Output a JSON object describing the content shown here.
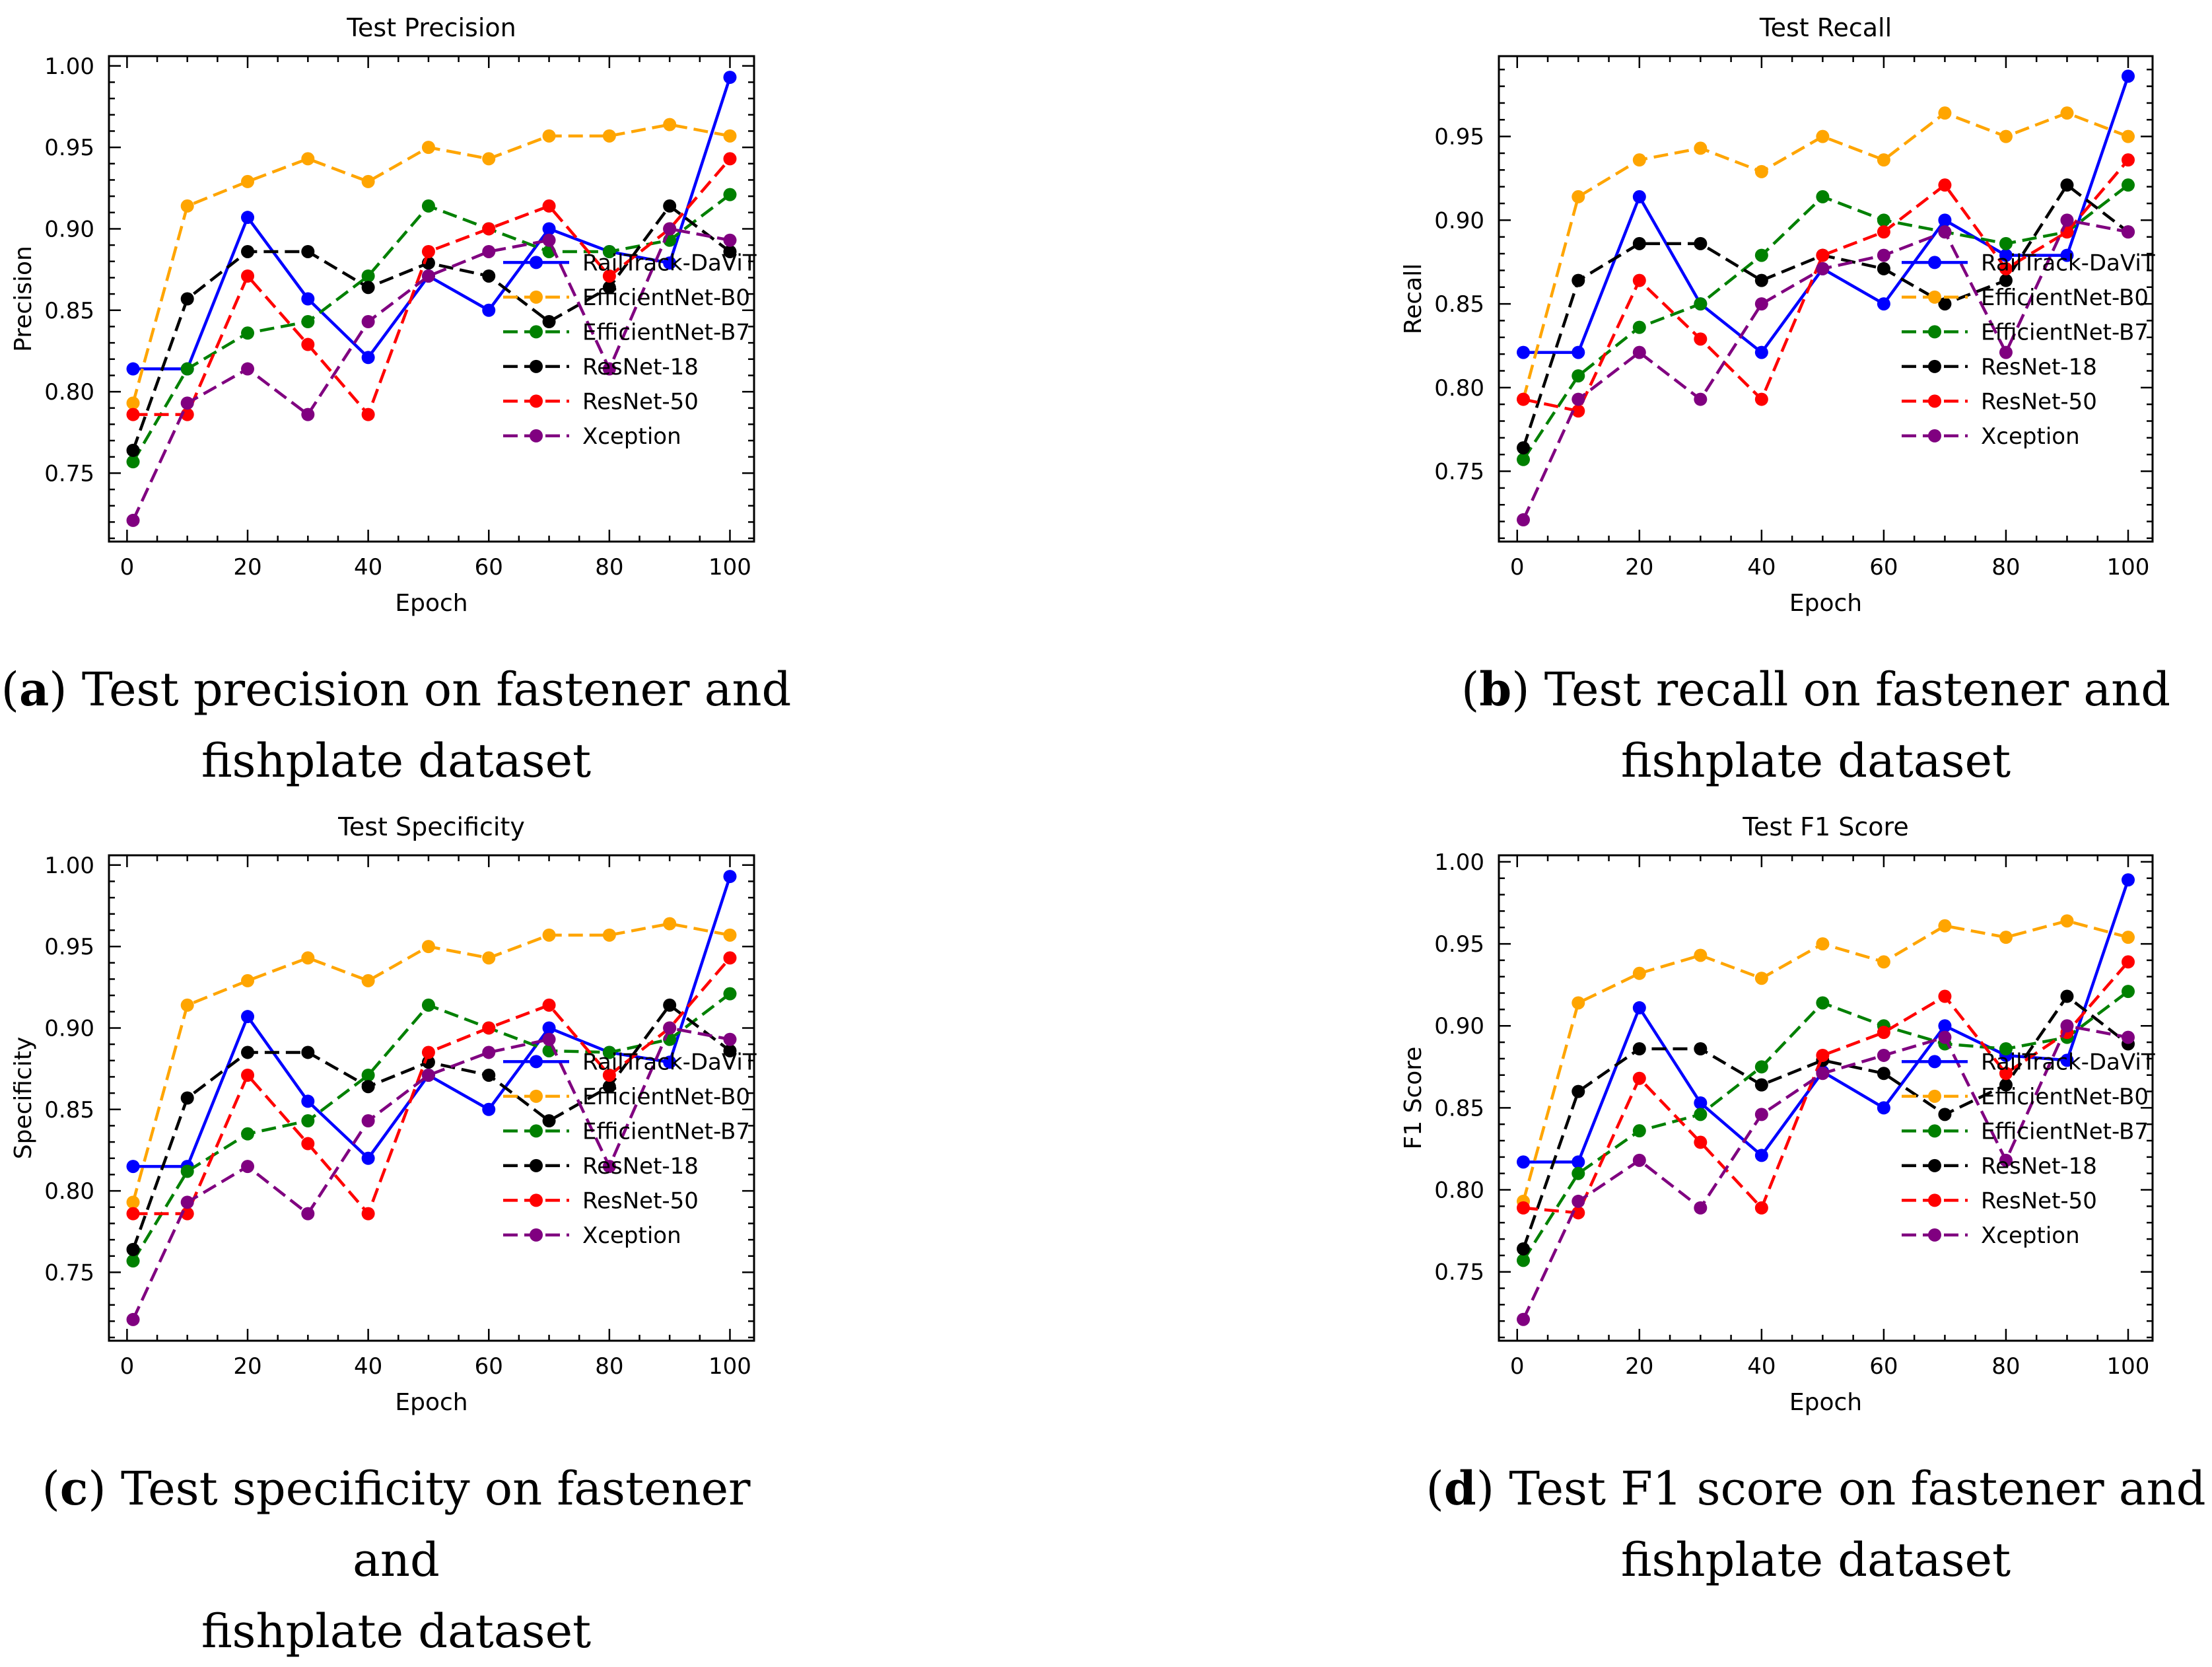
{
  "chart_data": [
    {
      "id": "a",
      "type": "line",
      "title": "Test Precision",
      "xlabel": "Epoch",
      "ylabel": "Precision",
      "x": [
        1,
        10,
        20,
        30,
        40,
        50,
        60,
        70,
        80,
        90,
        100
      ],
      "xlim": [
        -3,
        104
      ],
      "ylim": [
        0.708,
        1.006
      ],
      "xticks": [
        0,
        20,
        40,
        60,
        80,
        100
      ],
      "yticks": [
        0.75,
        0.8,
        0.85,
        0.9,
        0.95,
        1.0
      ],
      "grid": false,
      "legend_position": "center-right",
      "caption": {
        "letter": "a",
        "line1": " Test precision on fastener and",
        "line2": "fishplate dataset"
      },
      "series": [
        {
          "name": "RailTrack-DaViT",
          "color": "#0000ff",
          "style": "solid",
          "values": [
            0.814,
            0.814,
            0.907,
            0.857,
            0.821,
            0.871,
            0.85,
            0.9,
            0.886,
            0.879,
            0.993
          ]
        },
        {
          "name": "EfficientNet-B0",
          "color": "#ffa500",
          "style": "dashed",
          "values": [
            0.793,
            0.914,
            0.929,
            0.943,
            0.929,
            0.95,
            0.943,
            0.957,
            0.957,
            0.964,
            0.957
          ]
        },
        {
          "name": "EfficientNet-B7",
          "color": "#008000",
          "style": "dashed",
          "values": [
            0.757,
            0.814,
            0.836,
            0.843,
            0.871,
            0.914,
            0.9,
            0.886,
            0.886,
            0.893,
            0.921
          ]
        },
        {
          "name": "ResNet-18",
          "color": "#000000",
          "style": "dashed",
          "values": [
            0.764,
            0.857,
            0.886,
            0.886,
            0.864,
            0.879,
            0.871,
            0.843,
            0.864,
            0.914,
            0.886
          ]
        },
        {
          "name": "ResNet-50",
          "color": "#ff0000",
          "style": "dashed",
          "values": [
            0.786,
            0.786,
            0.871,
            0.829,
            0.786,
            0.886,
            0.9,
            0.914,
            0.871,
            0.9,
            0.943
          ]
        },
        {
          "name": "Xception",
          "color": "#800080",
          "style": "dashed",
          "values": [
            0.721,
            0.793,
            0.814,
            0.786,
            0.843,
            0.871,
            0.886,
            0.893,
            0.814,
            0.9,
            0.893
          ]
        }
      ]
    },
    {
      "id": "b",
      "type": "line",
      "title": "Test Recall",
      "xlabel": "Epoch",
      "ylabel": "Recall",
      "x": [
        1,
        10,
        20,
        30,
        40,
        50,
        60,
        70,
        80,
        90,
        100
      ],
      "xlim": [
        -3,
        104
      ],
      "ylim": [
        0.708,
        0.998
      ],
      "xticks": [
        0,
        20,
        40,
        60,
        80,
        100
      ],
      "yticks": [
        0.75,
        0.8,
        0.85,
        0.9,
        0.95
      ],
      "grid": false,
      "legend_position": "center-right",
      "caption": {
        "letter": "b",
        "line1": " Test recall on fastener and",
        "line2": "fishplate dataset"
      },
      "series": [
        {
          "name": "RailTrack-DaViT",
          "color": "#0000ff",
          "style": "solid",
          "values": [
            0.821,
            0.821,
            0.914,
            0.85,
            0.821,
            0.871,
            0.85,
            0.9,
            0.879,
            0.879,
            0.986
          ]
        },
        {
          "name": "EfficientNet-B0",
          "color": "#ffa500",
          "style": "dashed",
          "values": [
            0.793,
            0.914,
            0.936,
            0.943,
            0.929,
            0.95,
            0.936,
            0.964,
            0.95,
            0.964,
            0.95
          ]
        },
        {
          "name": "EfficientNet-B7",
          "color": "#008000",
          "style": "dashed",
          "values": [
            0.757,
            0.807,
            0.836,
            0.85,
            0.879,
            0.914,
            0.9,
            0.893,
            0.886,
            0.893,
            0.921
          ]
        },
        {
          "name": "ResNet-18",
          "color": "#000000",
          "style": "dashed",
          "values": [
            0.764,
            0.864,
            0.886,
            0.886,
            0.864,
            0.879,
            0.871,
            0.85,
            0.864,
            0.921,
            0.893
          ]
        },
        {
          "name": "ResNet-50",
          "color": "#ff0000",
          "style": "dashed",
          "values": [
            0.793,
            0.786,
            0.864,
            0.829,
            0.793,
            0.879,
            0.893,
            0.921,
            0.871,
            0.893,
            0.936
          ]
        },
        {
          "name": "Xception",
          "color": "#800080",
          "style": "dashed",
          "values": [
            0.721,
            0.793,
            0.821,
            0.793,
            0.85,
            0.871,
            0.879,
            0.893,
            0.821,
            0.9,
            0.893
          ]
        }
      ]
    },
    {
      "id": "c",
      "type": "line",
      "title": "Test Specificity",
      "xlabel": "Epoch",
      "ylabel": "Specificity",
      "x": [
        1,
        10,
        20,
        30,
        40,
        50,
        60,
        70,
        80,
        90,
        100
      ],
      "xlim": [
        -3,
        104
      ],
      "ylim": [
        0.708,
        1.006
      ],
      "xticks": [
        0,
        20,
        40,
        60,
        80,
        100
      ],
      "yticks": [
        0.75,
        0.8,
        0.85,
        0.9,
        0.95,
        1.0
      ],
      "grid": false,
      "legend_position": "center-right",
      "caption": {
        "letter": "c",
        "line1": " Test specificity on fastener and",
        "line2": "fishplate dataset"
      },
      "series": [
        {
          "name": "RailTrack-DaViT",
          "color": "#0000ff",
          "style": "solid",
          "values": [
            0.815,
            0.815,
            0.907,
            0.855,
            0.82,
            0.871,
            0.85,
            0.9,
            0.885,
            0.879,
            0.993
          ]
        },
        {
          "name": "EfficientNet-B0",
          "color": "#ffa500",
          "style": "dashed",
          "values": [
            0.793,
            0.914,
            0.929,
            0.943,
            0.929,
            0.95,
            0.943,
            0.957,
            0.957,
            0.964,
            0.957
          ]
        },
        {
          "name": "EfficientNet-B7",
          "color": "#008000",
          "style": "dashed",
          "values": [
            0.757,
            0.812,
            0.835,
            0.843,
            0.871,
            0.914,
            0.9,
            0.886,
            0.885,
            0.893,
            0.921
          ]
        },
        {
          "name": "ResNet-18",
          "color": "#000000",
          "style": "dashed",
          "values": [
            0.764,
            0.857,
            0.885,
            0.885,
            0.864,
            0.879,
            0.871,
            0.843,
            0.864,
            0.914,
            0.886
          ]
        },
        {
          "name": "ResNet-50",
          "color": "#ff0000",
          "style": "dashed",
          "values": [
            0.786,
            0.786,
            0.871,
            0.829,
            0.786,
            0.885,
            0.9,
            0.914,
            0.871,
            0.9,
            0.943
          ]
        },
        {
          "name": "Xception",
          "color": "#800080",
          "style": "dashed",
          "values": [
            0.721,
            0.793,
            0.815,
            0.786,
            0.843,
            0.871,
            0.885,
            0.893,
            0.815,
            0.9,
            0.893
          ]
        }
      ]
    },
    {
      "id": "d",
      "type": "line",
      "title": "Test F1 Score",
      "xlabel": "Epoch",
      "ylabel": "F1 Score",
      "x": [
        1,
        10,
        20,
        30,
        40,
        50,
        60,
        70,
        80,
        90,
        100
      ],
      "xlim": [
        -3,
        104
      ],
      "ylim": [
        0.708,
        1.004
      ],
      "xticks": [
        0,
        20,
        40,
        60,
        80,
        100
      ],
      "yticks": [
        0.75,
        0.8,
        0.85,
        0.9,
        0.95,
        1.0
      ],
      "grid": false,
      "legend_position": "center-right",
      "caption": {
        "letter": "d",
        "line1": " Test F1 score on fastener and",
        "line2": "fishplate dataset"
      },
      "series": [
        {
          "name": "RailTrack-DaViT",
          "color": "#0000ff",
          "style": "solid",
          "values": [
            0.817,
            0.817,
            0.911,
            0.853,
            0.821,
            0.872,
            0.85,
            0.9,
            0.882,
            0.879,
            0.989
          ]
        },
        {
          "name": "EfficientNet-B0",
          "color": "#ffa500",
          "style": "dashed",
          "values": [
            0.793,
            0.914,
            0.932,
            0.943,
            0.929,
            0.95,
            0.939,
            0.961,
            0.954,
            0.964,
            0.954
          ]
        },
        {
          "name": "EfficientNet-B7",
          "color": "#008000",
          "style": "dashed",
          "values": [
            0.757,
            0.81,
            0.836,
            0.846,
            0.875,
            0.914,
            0.9,
            0.889,
            0.886,
            0.893,
            0.921
          ]
        },
        {
          "name": "ResNet-18",
          "color": "#000000",
          "style": "dashed",
          "values": [
            0.764,
            0.86,
            0.886,
            0.886,
            0.864,
            0.879,
            0.871,
            0.846,
            0.864,
            0.918,
            0.889
          ]
        },
        {
          "name": "ResNet-50",
          "color": "#ff0000",
          "style": "dashed",
          "values": [
            0.789,
            0.786,
            0.868,
            0.829,
            0.789,
            0.882,
            0.896,
            0.918,
            0.871,
            0.896,
            0.939
          ]
        },
        {
          "name": "Xception",
          "color": "#800080",
          "style": "dashed",
          "values": [
            0.721,
            0.793,
            0.818,
            0.789,
            0.846,
            0.871,
            0.882,
            0.893,
            0.818,
            0.9,
            0.893
          ]
        }
      ]
    }
  ]
}
